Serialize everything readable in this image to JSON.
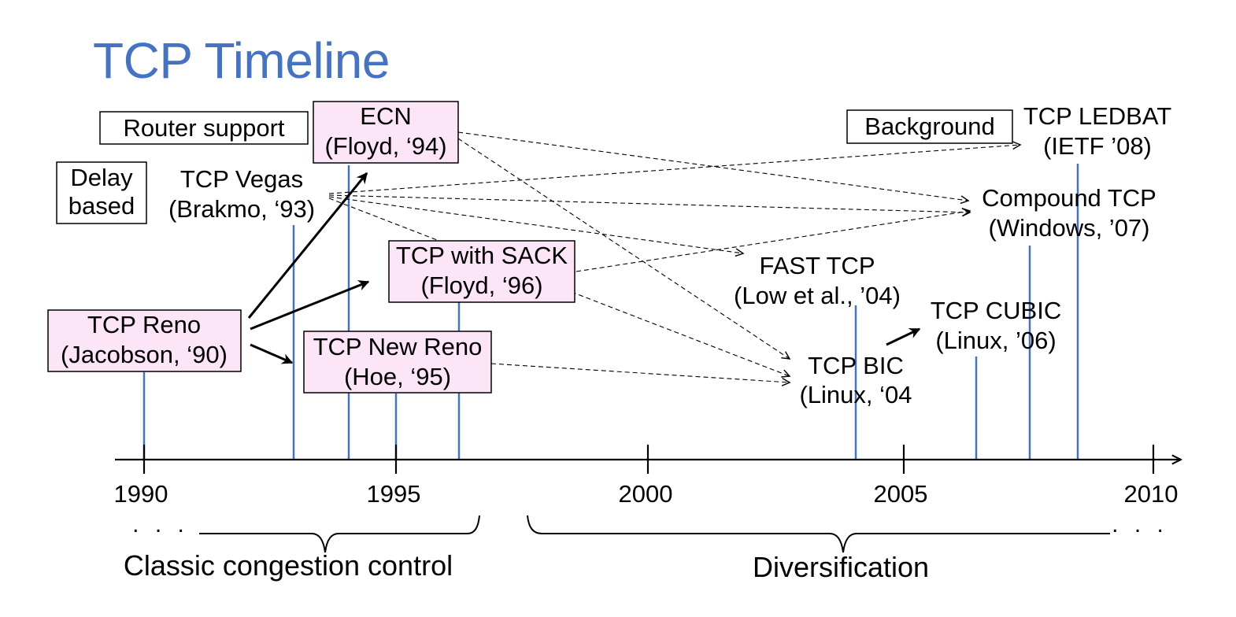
{
  "title": "TCP Timeline",
  "categories": {
    "router": "Router support",
    "delay": [
      "Delay",
      "based"
    ],
    "background": "Background"
  },
  "nodes": {
    "reno": [
      "TCP Reno",
      "(Jacobson, ‘90)"
    ],
    "vegas": [
      "TCP Vegas",
      "(Brakmo, ‘93)"
    ],
    "ecn": [
      "ECN",
      "(Floyd, ‘94)"
    ],
    "newreno": [
      "TCP New Reno",
      "(Hoe, ‘95)"
    ],
    "sack": [
      "TCP with SACK",
      "(Floyd, ‘96)"
    ],
    "fast": [
      "FAST TCP",
      "(Low et al., ’04)"
    ],
    "bic": [
      "TCP BIC",
      "(Linux, ‘04"
    ],
    "cubic": [
      "TCP CUBIC",
      "(Linux, ’06)"
    ],
    "compound": [
      "Compound TCP",
      "(Windows, ’07)"
    ],
    "ledbat": [
      "TCP LEDBAT",
      "(IETF ’08)"
    ]
  },
  "axis": {
    "labels": [
      "1990",
      "1995",
      "2000",
      "2005",
      "2010"
    ],
    "ellipsis": ". . ."
  },
  "eras": {
    "classic": "Classic congestion control",
    "diversification": "Diversification"
  },
  "colors": {
    "title": "#4472c4",
    "node_fill": "#fbe5f6",
    "marker_line": "#4472c4",
    "text": "#000000"
  }
}
